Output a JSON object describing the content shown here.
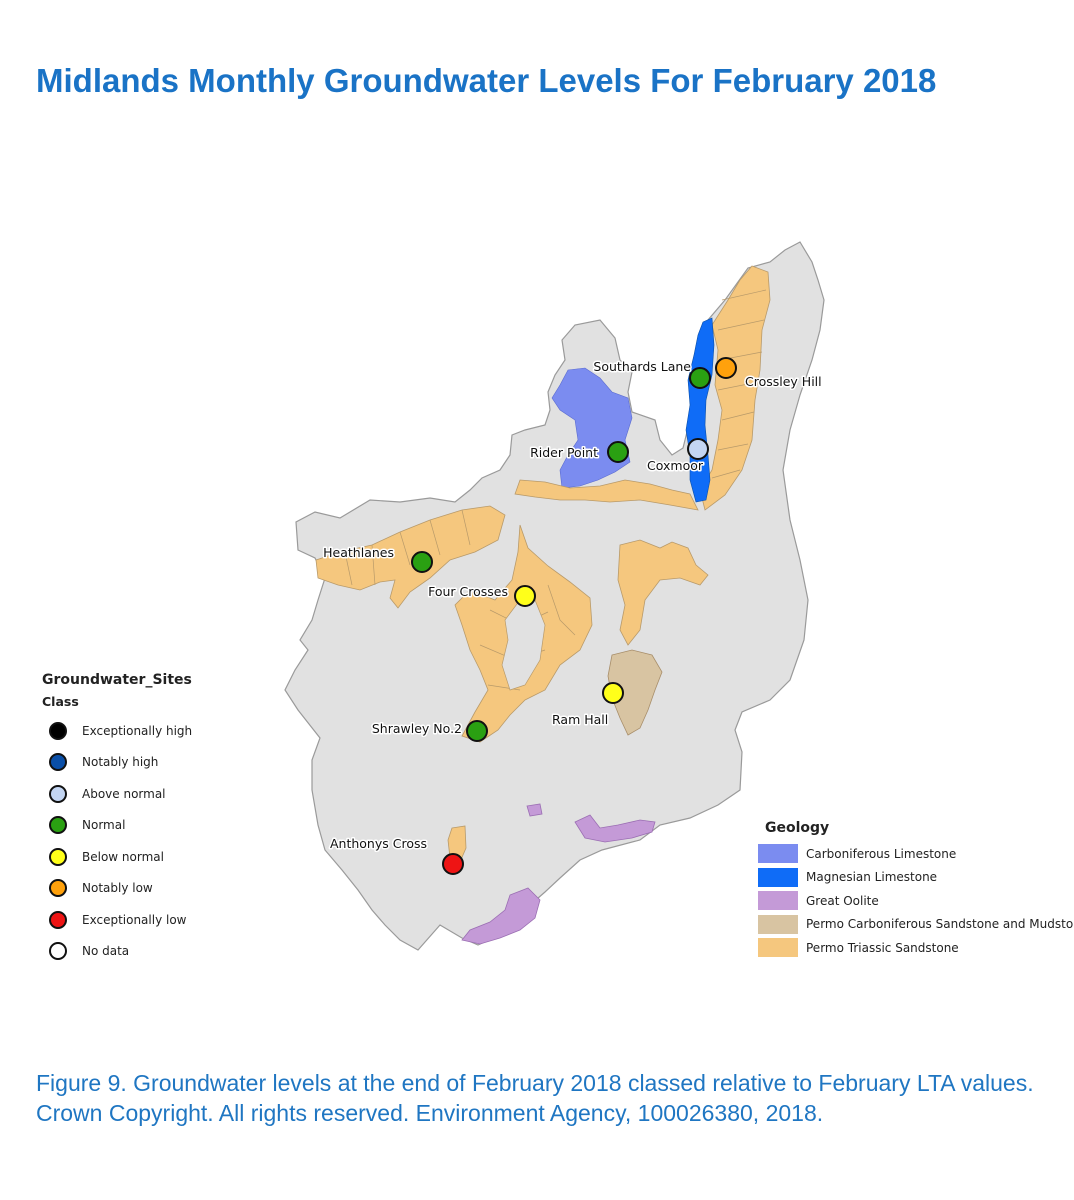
{
  "title": "Midlands Monthly Groundwater Levels For February 2018",
  "caption": "Figure 9. Groundwater levels at the end of February 2018 classed relative to February LTA values. Crown Copyright. All rights reserved. Environment Agency, 100026380, 2018.",
  "colors": {
    "region": "#e1e1e1",
    "region_outline": "#9a9a9a",
    "title": "#1a73c6",
    "caption": "#1f76c2"
  },
  "sites_legend": {
    "title": "Groundwater_Sites",
    "subtitle": "Class",
    "classes": [
      {
        "key": "exceptionally_high",
        "label": "Exceptionally high",
        "color": "#000000"
      },
      {
        "key": "notably_high",
        "label": "Notably high",
        "color": "#0a4fa8"
      },
      {
        "key": "above_normal",
        "label": "Above normal",
        "color": "#c3d5f2"
      },
      {
        "key": "normal",
        "label": "Normal",
        "color": "#2aa012"
      },
      {
        "key": "below_normal",
        "label": "Below normal",
        "color": "#ffff1a"
      },
      {
        "key": "notably_low",
        "label": "Notably low",
        "color": "#ffa10c"
      },
      {
        "key": "exceptionally_low",
        "label": "Exceptionally low",
        "color": "#ee1414"
      },
      {
        "key": "no_data",
        "label": "No data",
        "color": "#ffffff"
      }
    ]
  },
  "geology_legend": {
    "title": "Geology",
    "items": [
      {
        "label": "Carboniferous Limestone",
        "color": "#7b8cf0"
      },
      {
        "label": "Magnesian Limestone",
        "color": "#0f6cf7"
      },
      {
        "label": "Great Oolite",
        "color": "#c49ad7"
      },
      {
        "label": "Permo Carboniferous Sandstone and Mudstone",
        "color": "#d8c4a2"
      },
      {
        "label": "Permo Triassic Sandstone",
        "color": "#f5c77e"
      }
    ]
  },
  "sites": [
    {
      "name": "Southards Lane",
      "class": "normal",
      "color": "#2aa012"
    },
    {
      "name": "Crossley Hill",
      "class": "notably_low",
      "color": "#ffa10c"
    },
    {
      "name": "Rider Point",
      "class": "normal",
      "color": "#2aa012"
    },
    {
      "name": "Coxmoor",
      "class": "above_normal",
      "color": "#c3d5f2"
    },
    {
      "name": "Heathlanes",
      "class": "normal",
      "color": "#2aa012"
    },
    {
      "name": "Four Crosses",
      "class": "below_normal",
      "color": "#ffff1a"
    },
    {
      "name": "Ram Hall",
      "class": "below_normal",
      "color": "#ffff1a"
    },
    {
      "name": "Shrawley No.2",
      "class": "normal",
      "color": "#2aa012"
    },
    {
      "name": "Anthonys Cross",
      "class": "exceptionally_low",
      "color": "#ee1414"
    }
  ]
}
